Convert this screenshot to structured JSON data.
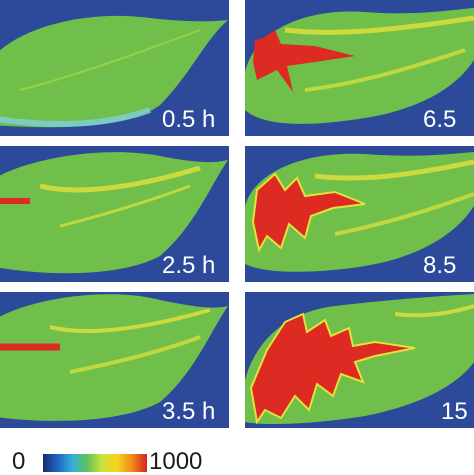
{
  "panels": [
    {
      "label": "0.5 h",
      "red_level": 0.0
    },
    {
      "label": "6.5",
      "red_level": 0.3
    },
    {
      "label": "2.5 h",
      "red_level": 0.05
    },
    {
      "label": "8.5",
      "red_level": 0.5
    },
    {
      "label": "3.5 h",
      "red_level": 0.08
    },
    {
      "label": "15",
      "red_level": 0.85
    }
  ],
  "colorbar": {
    "min_label": "0",
    "max_label": "1000",
    "stops": [
      "#1a2a6e",
      "#1f66c6",
      "#35b0d6",
      "#5fc35a",
      "#cfe23a",
      "#f6d21e",
      "#f08a1a",
      "#d8231e"
    ]
  },
  "colors": {
    "background": "#2d4a9a",
    "leaf_green": "#6fbf4a",
    "leaf_yellow": "#e2e23a",
    "lesion_red": "#dd2a22",
    "edge_cyan": "#7fd0dc"
  }
}
